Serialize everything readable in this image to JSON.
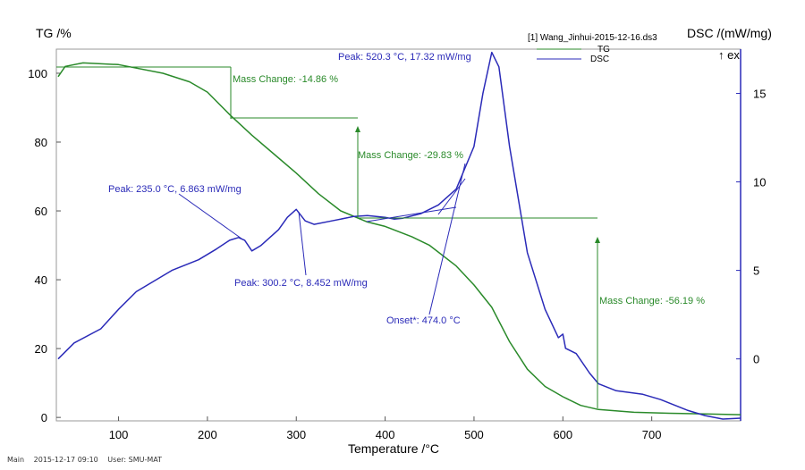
{
  "chart_data": {
    "type": "line",
    "xlabel": "Temperature /°C",
    "ylabel_left": "TG /%",
    "ylabel_right": "DSC /(mW/mg)",
    "exo_label": "↑ ex",
    "xlim": [
      30,
      800
    ],
    "ylim_left": [
      -1,
      107
    ],
    "ylim_right": [
      -3.5,
      17.5
    ],
    "x_ticks": [
      100,
      200,
      300,
      400,
      500,
      600,
      700
    ],
    "y_left_ticks": [
      0,
      20,
      40,
      60,
      80,
      100
    ],
    "y_right_ticks": [
      0,
      5,
      10,
      15
    ],
    "file_label": "[1] Wang_Jinhui-2015-12-16.ds3",
    "legend": [
      {
        "name": "TG",
        "color": "#2a8a2a"
      },
      {
        "name": "DSC",
        "color": "#2a2ab8"
      }
    ],
    "series": [
      {
        "name": "TG",
        "axis": "left",
        "color": "#2a8a2a",
        "points": [
          [
            32,
            99
          ],
          [
            40,
            102
          ],
          [
            60,
            103
          ],
          [
            100,
            102.5
          ],
          [
            150,
            100
          ],
          [
            180,
            97.5
          ],
          [
            200,
            94.5
          ],
          [
            225,
            88
          ],
          [
            250,
            82
          ],
          [
            275,
            76.5
          ],
          [
            300,
            71
          ],
          [
            325,
            65
          ],
          [
            350,
            60
          ],
          [
            380,
            56.8
          ],
          [
            400,
            55.5
          ],
          [
            430,
            52.5
          ],
          [
            450,
            50
          ],
          [
            480,
            44
          ],
          [
            500,
            38.5
          ],
          [
            520,
            32
          ],
          [
            540,
            22
          ],
          [
            560,
            14
          ],
          [
            580,
            9
          ],
          [
            600,
            6
          ],
          [
            620,
            3.5
          ],
          [
            640,
            2.3
          ],
          [
            680,
            1.5
          ],
          [
            720,
            1.2
          ],
          [
            760,
            1.0
          ],
          [
            800,
            0.8
          ]
        ]
      },
      {
        "name": "DSC",
        "axis": "right",
        "color": "#2a2ab8",
        "points": [
          [
            32,
            0
          ],
          [
            50,
            0.9
          ],
          [
            80,
            1.7
          ],
          [
            100,
            2.8
          ],
          [
            120,
            3.8
          ],
          [
            140,
            4.4
          ],
          [
            160,
            5
          ],
          [
            190,
            5.6
          ],
          [
            210,
            6.2
          ],
          [
            225,
            6.7
          ],
          [
            235,
            6.86
          ],
          [
            242,
            6.7
          ],
          [
            250,
            6.1
          ],
          [
            260,
            6.4
          ],
          [
            280,
            7.3
          ],
          [
            290,
            8
          ],
          [
            300,
            8.45
          ],
          [
            310,
            7.8
          ],
          [
            320,
            7.6
          ],
          [
            340,
            7.8
          ],
          [
            365,
            8.05
          ],
          [
            380,
            8.1
          ],
          [
            400,
            8.0
          ],
          [
            410,
            7.9
          ],
          [
            420,
            7.95
          ],
          [
            440,
            8.2
          ],
          [
            460,
            8.7
          ],
          [
            480,
            9.6
          ],
          [
            500,
            12
          ],
          [
            510,
            15
          ],
          [
            520,
            17.32
          ],
          [
            528,
            16.5
          ],
          [
            540,
            12
          ],
          [
            560,
            6
          ],
          [
            580,
            2.8
          ],
          [
            595,
            1.2
          ],
          [
            600,
            1.4
          ],
          [
            603,
            0.6
          ],
          [
            615,
            0.3
          ],
          [
            630,
            -0.8
          ],
          [
            640,
            -1.4
          ],
          [
            660,
            -1.8
          ],
          [
            690,
            -2.0
          ],
          [
            710,
            -2.3
          ],
          [
            740,
            -2.9
          ],
          [
            760,
            -3.2
          ],
          [
            780,
            -3.4
          ],
          [
            800,
            -3.35
          ]
        ]
      }
    ],
    "annotations": [
      {
        "text": "Mass Change: -14.86 %",
        "color": "#2a8a2a"
      },
      {
        "text": "Mass Change: -29.83 %",
        "color": "#2a8a2a"
      },
      {
        "text": "Mass Change: -56.19 %",
        "color": "#2a8a2a"
      },
      {
        "text": "Peak: 520.3 °C, 17.32 mW/mg",
        "color": "#2a2ab8"
      },
      {
        "text": "Peak: 235.0 °C, 6.863 mW/mg",
        "color": "#2a2ab8"
      },
      {
        "text": "Peak: 300.2 °C, 8.452 mW/mg",
        "color": "#2a2ab8"
      },
      {
        "text": "Onset*: 474.0 °C",
        "color": "#2a2ab8"
      }
    ]
  },
  "footer": {
    "main": "Main",
    "date": "2015-12-17 09:10",
    "user": "User: SMU-MAT"
  }
}
